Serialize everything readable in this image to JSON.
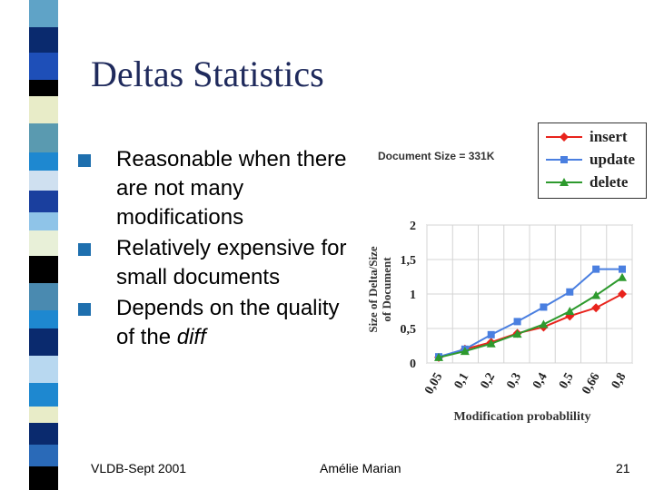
{
  "slide": {
    "title": "Deltas Statistics",
    "bullets": [
      "Reasonable when there are not many modifications",
      "Relatively expensive for small documents",
      "Depends on the quality of the "
    ],
    "bullet3_italic": "diff",
    "footer_left": "VLDB-Sept 2001",
    "footer_center": "Amélie Marian",
    "page_number": "21"
  },
  "colors": {
    "accent": "#1e6fae",
    "title": "#1f2a5c",
    "insert": "#e8231c",
    "update": "#4a7fe0",
    "delete": "#2e9a2e"
  },
  "chart_data": {
    "type": "line",
    "title": "Document Size = 331K",
    "xlabel": "Modification probablility",
    "ylabel": "Size of Delta/Size of Document",
    "categories": [
      "0,05",
      "0,1",
      "0,2",
      "0,3",
      "0,4",
      "0,5",
      "0,66",
      "0,8"
    ],
    "yticks": [
      "0",
      "0,5",
      "1",
      "1,5",
      "2"
    ],
    "ylim": [
      0,
      2
    ],
    "grid": true,
    "legend_position": "top-right",
    "series": [
      {
        "name": "insert",
        "marker": "diamond",
        "values": [
          0.08,
          0.2,
          0.3,
          0.43,
          0.52,
          0.68,
          0.8,
          1.0
        ]
      },
      {
        "name": "update",
        "marker": "square",
        "values": [
          0.09,
          0.2,
          0.41,
          0.6,
          0.81,
          1.03,
          1.36,
          1.36
        ]
      },
      {
        "name": "delete",
        "marker": "triangle",
        "values": [
          0.08,
          0.17,
          0.28,
          0.42,
          0.56,
          0.75,
          0.98,
          1.24
        ]
      }
    ]
  }
}
